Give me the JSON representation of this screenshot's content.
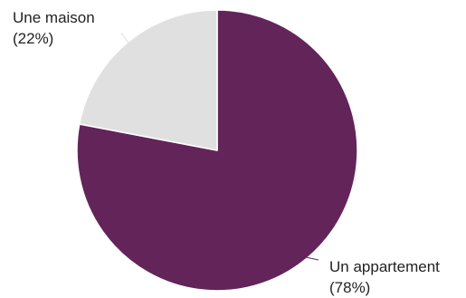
{
  "chart_data": {
    "type": "pie",
    "start_angle_deg": 0,
    "direction": "clockwise",
    "slices": [
      {
        "label": "Un appartement",
        "value": 78,
        "value_text": "(78%)",
        "color": "#63245A"
      },
      {
        "label": "Une maison",
        "value": 22,
        "value_text": "(22%)",
        "color": "#E0E0E0"
      }
    ]
  }
}
